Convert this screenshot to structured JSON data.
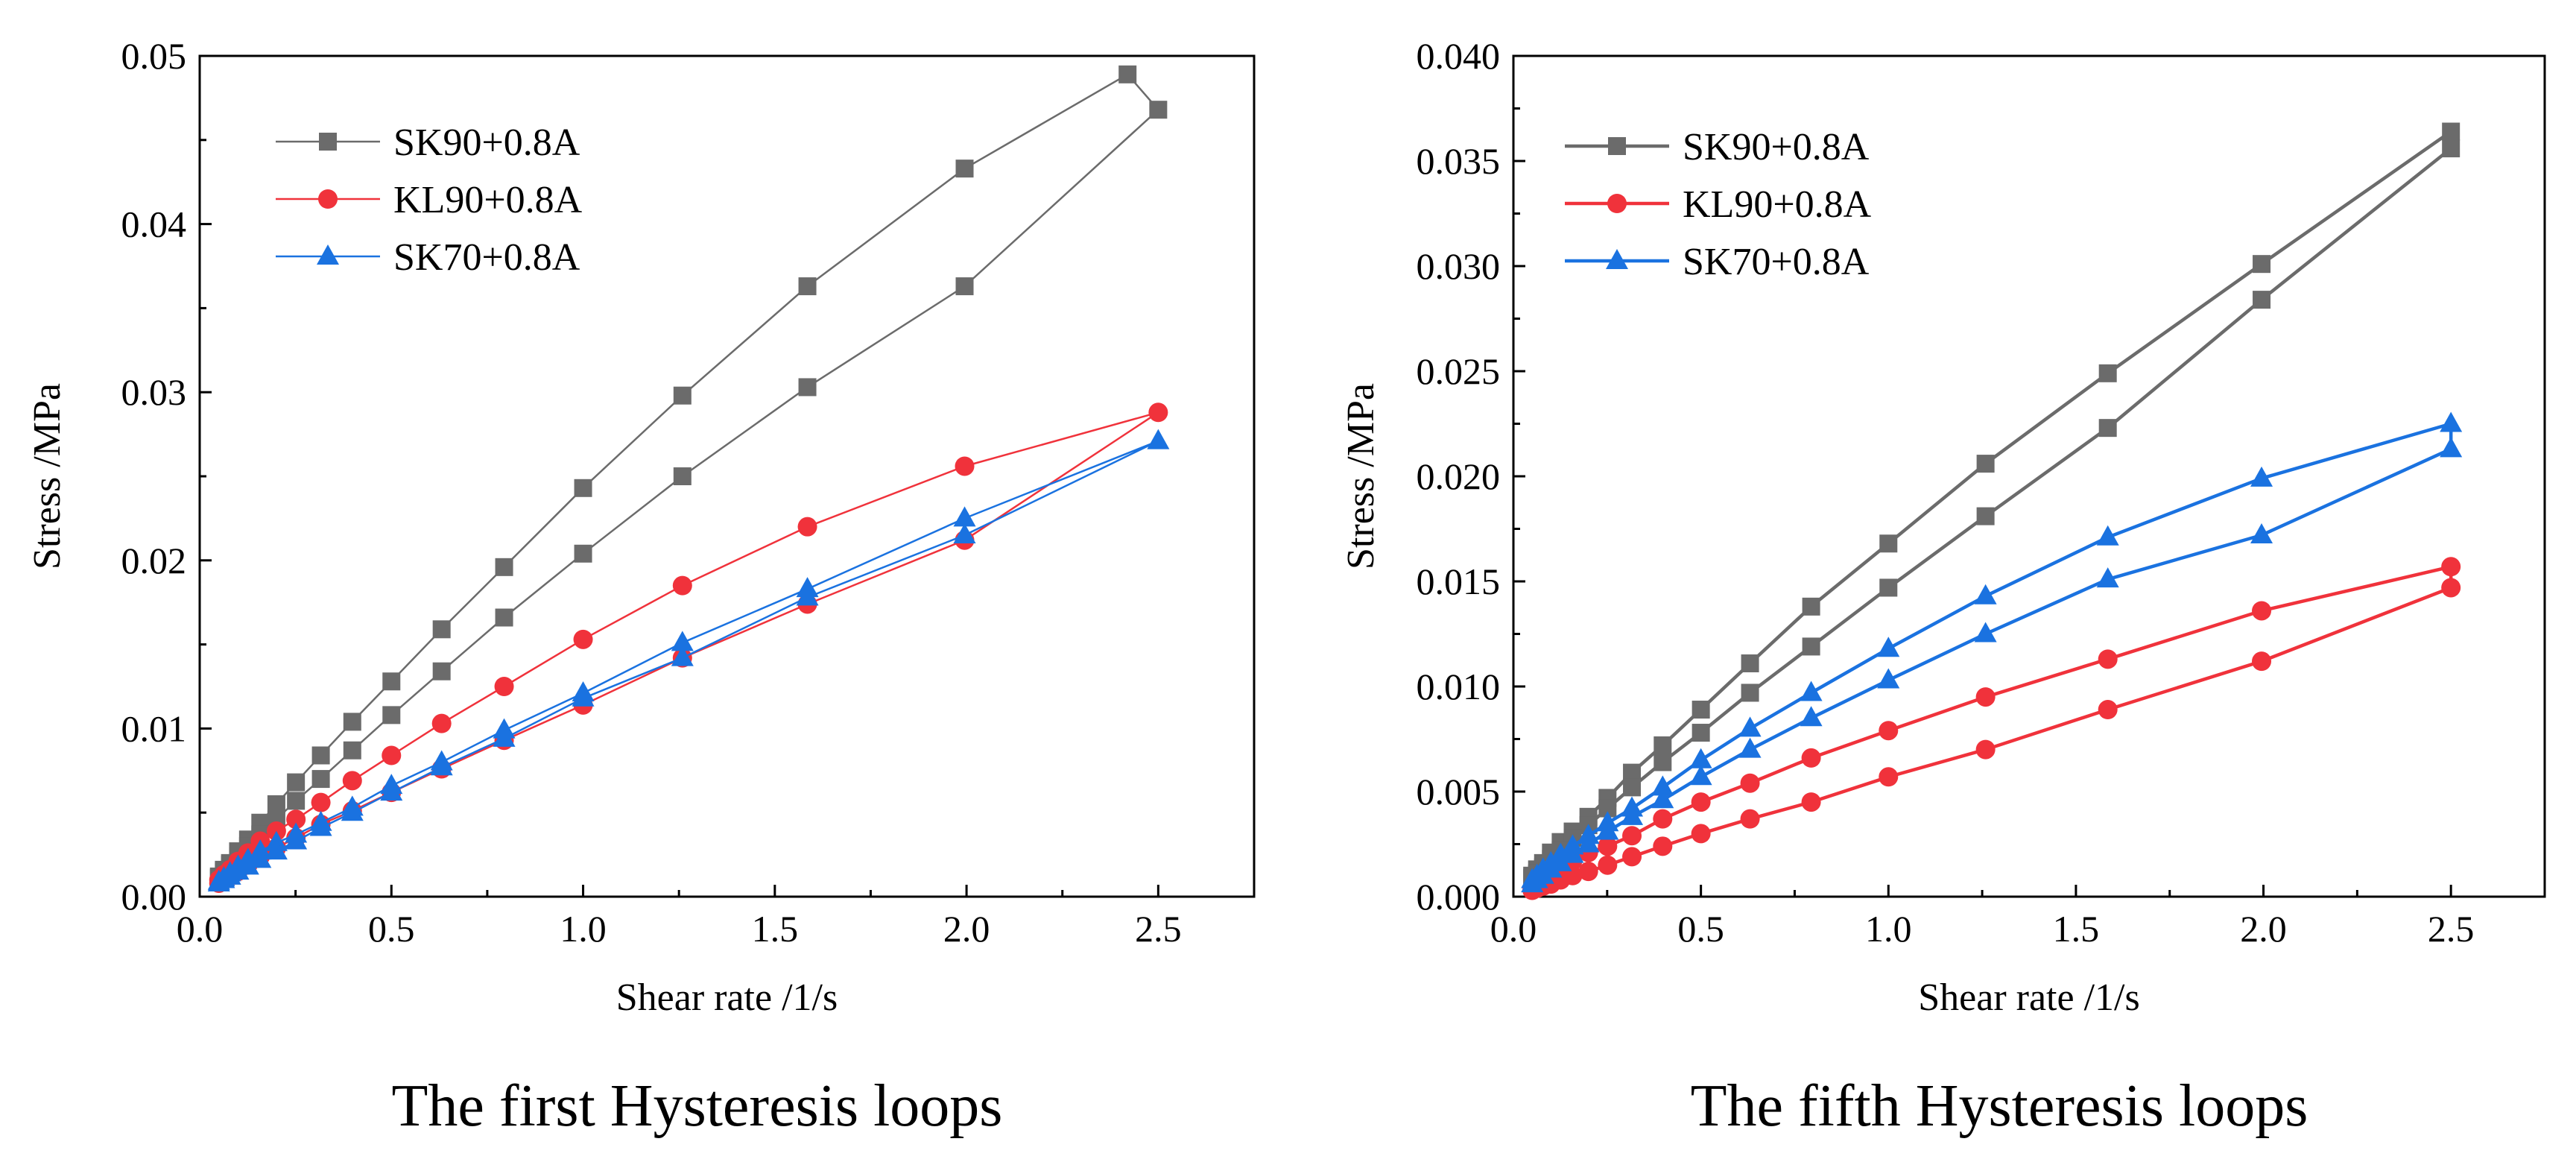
{
  "colors": {
    "SK90+0.8A": "#6b6b6b",
    "KL90+0.8A": "#f0323b",
    "SK70+0.8A": "#1a72e0"
  },
  "chart_data": [
    {
      "type": "line",
      "title": "The first Hysteresis loops",
      "xlabel": "Shear rate /1/s",
      "ylabel": "Stress /MPa",
      "xlim": [
        0,
        2.75
      ],
      "ylim": [
        0,
        0.05
      ],
      "xticks": [
        0.0,
        0.5,
        1.0,
        1.5,
        2.0,
        2.5
      ],
      "xtick_labels": [
        "0.0",
        "0.5",
        "1.0",
        "1.5",
        "2.0",
        "2.5"
      ],
      "yticks": [
        0,
        0.01,
        0.02,
        0.03,
        0.04,
        0.05
      ],
      "ytick_labels": [
        "0.00",
        "0.01",
        "0.02",
        "0.03",
        "0.04",
        "0.05"
      ],
      "legend_position": "top-left",
      "series": [
        {
          "name": "SK90+0.8A",
          "marker": "square",
          "x": [
            0.05,
            0.063,
            0.079,
            0.1,
            0.126,
            0.158,
            0.2,
            0.251,
            0.316,
            0.398,
            0.5,
            0.631,
            0.794,
            1.0,
            1.259,
            1.585,
            1.995,
            2.42,
            2.5,
            1.995,
            1.585,
            1.259,
            1.0,
            0.794,
            0.631,
            0.5,
            0.398,
            0.316,
            0.251,
            0.2,
            0.158,
            0.126,
            0.1,
            0.079,
            0.063,
            0.05
          ],
          "y": [
            0.0012,
            0.0016,
            0.002,
            0.0027,
            0.0034,
            0.0044,
            0.0055,
            0.0068,
            0.0084,
            0.0104,
            0.0128,
            0.0159,
            0.0196,
            0.0243,
            0.0298,
            0.0363,
            0.0433,
            0.0489,
            0.0468,
            0.0363,
            0.0303,
            0.025,
            0.0204,
            0.0166,
            0.0134,
            0.0108,
            0.0087,
            0.007,
            0.0057,
            0.0046,
            0.0037,
            0.003,
            0.0024,
            0.0019,
            0.0015,
            0.0011
          ]
        },
        {
          "name": "KL90+0.8A",
          "marker": "circle",
          "x": [
            0.05,
            0.063,
            0.079,
            0.1,
            0.126,
            0.158,
            0.2,
            0.251,
            0.316,
            0.398,
            0.5,
            0.631,
            0.794,
            1.0,
            1.259,
            1.585,
            1.995,
            2.5,
            1.995,
            1.585,
            1.259,
            1.0,
            0.794,
            0.631,
            0.5,
            0.398,
            0.316,
            0.251,
            0.2,
            0.158,
            0.126,
            0.1,
            0.079,
            0.063,
            0.05
          ],
          "y": [
            0.001,
            0.0013,
            0.0016,
            0.0021,
            0.0026,
            0.0033,
            0.0039,
            0.0046,
            0.0056,
            0.0069,
            0.0084,
            0.0103,
            0.0125,
            0.0153,
            0.0185,
            0.022,
            0.0256,
            0.0288,
            0.0212,
            0.0174,
            0.0142,
            0.0114,
            0.0093,
            0.0076,
            0.0062,
            0.0051,
            0.0043,
            0.0035,
            0.0029,
            0.0024,
            0.0019,
            0.0015,
            0.0012,
            0.001,
            0.0008
          ]
        },
        {
          "name": "SK70+0.8A",
          "marker": "triangle",
          "x": [
            0.05,
            0.063,
            0.079,
            0.1,
            0.126,
            0.158,
            0.2,
            0.251,
            0.316,
            0.398,
            0.5,
            0.631,
            0.794,
            1.0,
            1.259,
            1.585,
            1.995,
            2.5,
            1.995,
            1.585,
            1.259,
            1.0,
            0.794,
            0.631,
            0.5,
            0.398,
            0.316,
            0.251,
            0.2,
            0.158,
            0.126,
            0.1,
            0.079,
            0.063,
            0.05
          ],
          "y": [
            0.0009,
            0.0011,
            0.0014,
            0.0018,
            0.0022,
            0.0027,
            0.0032,
            0.0037,
            0.0044,
            0.0053,
            0.0066,
            0.008,
            0.0099,
            0.0121,
            0.0151,
            0.0183,
            0.0225,
            0.0271,
            0.0215,
            0.0178,
            0.0142,
            0.0118,
            0.0094,
            0.0077,
            0.0062,
            0.005,
            0.0041,
            0.0033,
            0.0027,
            0.0022,
            0.0018,
            0.0015,
            0.0012,
            0.001,
            0.0008
          ]
        }
      ]
    },
    {
      "type": "line",
      "title": "The fifth Hysteresis loops",
      "xlabel": "Shear rate /1/s",
      "ylabel": "Stress /MPa",
      "xlim": [
        0,
        2.75
      ],
      "ylim": [
        0,
        0.04
      ],
      "xticks": [
        0.0,
        0.5,
        1.0,
        1.5,
        2.0,
        2.5
      ],
      "xtick_labels": [
        "0.0",
        "0.5",
        "1.0",
        "1.5",
        "2.0",
        "2.5"
      ],
      "yticks": [
        0,
        0.005,
        0.01,
        0.015,
        0.02,
        0.025,
        0.03,
        0.035,
        0.04
      ],
      "ytick_labels": [
        "0.000",
        "0.005",
        "0.010",
        "0.015",
        "0.020",
        "0.025",
        "0.030",
        "0.035",
        "0.040"
      ],
      "legend_position": "top-left",
      "series": [
        {
          "name": "SK90+0.8A",
          "marker": "square",
          "x": [
            0.05,
            0.063,
            0.079,
            0.1,
            0.126,
            0.158,
            0.2,
            0.251,
            0.316,
            0.398,
            0.5,
            0.631,
            0.794,
            1.0,
            1.259,
            1.585,
            1.995,
            2.5,
            2.5,
            1.995,
            1.585,
            1.259,
            1.0,
            0.794,
            0.631,
            0.5,
            0.398,
            0.316,
            0.251,
            0.2,
            0.158,
            0.126,
            0.1,
            0.079,
            0.063,
            0.05
          ],
          "y": [
            0.001,
            0.0013,
            0.0016,
            0.0021,
            0.0026,
            0.0031,
            0.0038,
            0.0047,
            0.0059,
            0.0072,
            0.0089,
            0.0111,
            0.0138,
            0.0168,
            0.0206,
            0.0249,
            0.0301,
            0.0364,
            0.0356,
            0.0284,
            0.0223,
            0.0181,
            0.0147,
            0.0119,
            0.0097,
            0.0078,
            0.0064,
            0.0052,
            0.0042,
            0.0034,
            0.0028,
            0.0022,
            0.0018,
            0.0014,
            0.0011,
            0.0009
          ]
        },
        {
          "name": "KL90+0.8A",
          "marker": "circle",
          "x": [
            0.05,
            0.063,
            0.079,
            0.1,
            0.126,
            0.158,
            0.2,
            0.251,
            0.316,
            0.398,
            0.5,
            0.631,
            0.794,
            1.0,
            1.259,
            1.585,
            1.995,
            2.5,
            2.5,
            1.995,
            1.585,
            1.259,
            1.0,
            0.794,
            0.631,
            0.5,
            0.398,
            0.316,
            0.251,
            0.2,
            0.158,
            0.126,
            0.1,
            0.079,
            0.063,
            0.05
          ],
          "y": [
            0.0004,
            0.0006,
            0.0008,
            0.0011,
            0.0014,
            0.0017,
            0.0021,
            0.0024,
            0.0029,
            0.0037,
            0.0045,
            0.0054,
            0.0066,
            0.0079,
            0.0095,
            0.0113,
            0.0136,
            0.0157,
            0.0147,
            0.0112,
            0.0089,
            0.007,
            0.0057,
            0.0045,
            0.0037,
            0.003,
            0.0024,
            0.0019,
            0.0015,
            0.0012,
            0.001,
            0.0008,
            0.0006,
            0.0005,
            0.0004,
            0.0003
          ]
        },
        {
          "name": "SK70+0.8A",
          "marker": "triangle",
          "x": [
            0.05,
            0.063,
            0.079,
            0.1,
            0.126,
            0.158,
            0.2,
            0.251,
            0.316,
            0.398,
            0.5,
            0.631,
            0.794,
            1.0,
            1.259,
            1.585,
            1.995,
            2.5,
            2.5,
            1.995,
            1.585,
            1.259,
            1.0,
            0.794,
            0.631,
            0.5,
            0.398,
            0.316,
            0.251,
            0.2,
            0.158,
            0.126,
            0.1,
            0.079,
            0.063,
            0.05
          ],
          "y": [
            0.0008,
            0.001,
            0.0013,
            0.0016,
            0.002,
            0.0024,
            0.0029,
            0.0035,
            0.0042,
            0.0052,
            0.0065,
            0.008,
            0.0097,
            0.0118,
            0.0143,
            0.0171,
            0.0199,
            0.0225,
            0.0213,
            0.0172,
            0.0151,
            0.0125,
            0.0103,
            0.0085,
            0.007,
            0.0057,
            0.0046,
            0.0038,
            0.0031,
            0.0025,
            0.002,
            0.0016,
            0.0013,
            0.001,
            0.0008,
            0.0006
          ]
        }
      ]
    }
  ]
}
